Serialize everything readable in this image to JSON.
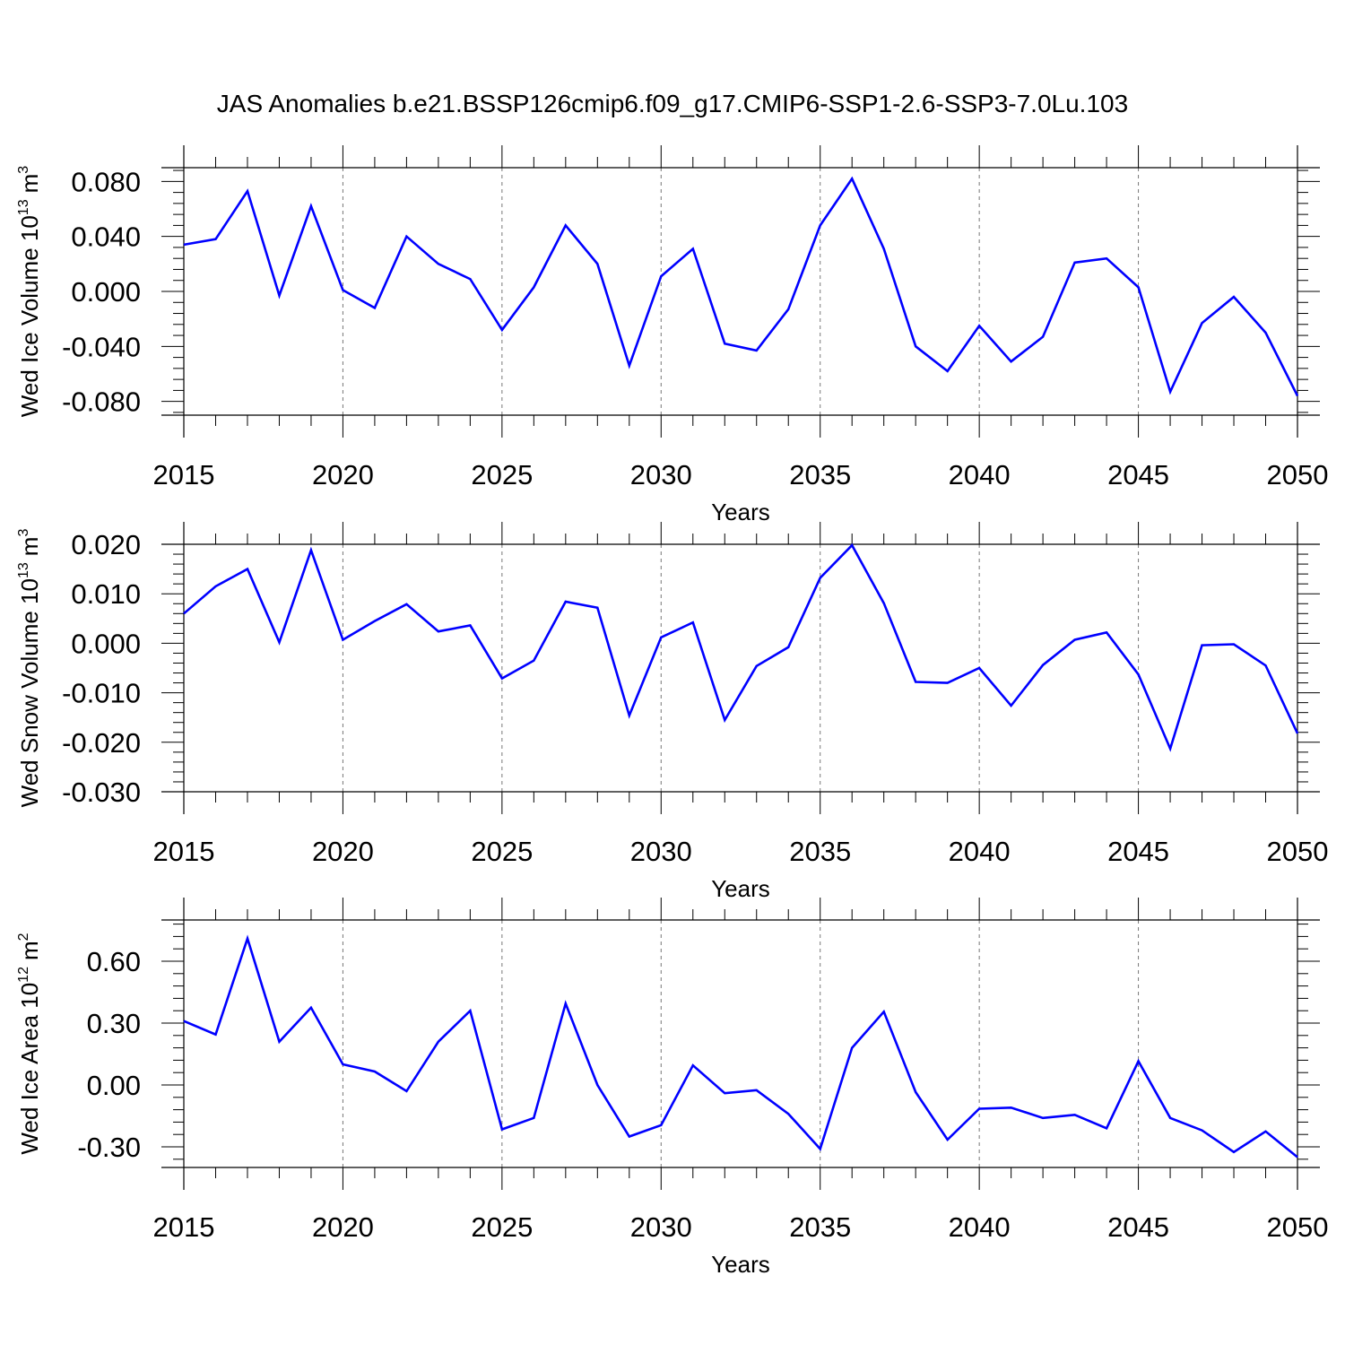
{
  "title": "JAS Anomalies b.e21.BSSP126cmip6.f09_g17.CMIP6-SSP1-2.6-SSP3-7.0Lu.103",
  "line_color": "#0000ff",
  "chart_data": [
    {
      "type": "line",
      "xlabel": "Years",
      "ylabel": {
        "main": "Wed Ice Volume 10",
        "exp": "13",
        "unit": "m",
        "unit_exp": "3"
      },
      "xlim": [
        2015,
        2050
      ],
      "ylim": [
        -0.09,
        0.09
      ],
      "xticks": [
        2015,
        2020,
        2025,
        2030,
        2035,
        2040,
        2045,
        2050
      ],
      "xtick_labels": [
        "2015",
        "2020",
        "2025",
        "2030",
        "2035",
        "2040",
        "2045",
        "2050"
      ],
      "yticks": [
        -0.08,
        -0.04,
        0.0,
        0.04,
        0.08
      ],
      "ytick_labels": [
        "-0.080",
        "-0.040",
        "0.000",
        "0.040",
        "0.080"
      ],
      "x": [
        2015,
        2016,
        2017,
        2018,
        2019,
        2020,
        2021,
        2022,
        2023,
        2024,
        2025,
        2026,
        2027,
        2028,
        2029,
        2030,
        2031,
        2032,
        2033,
        2034,
        2035,
        2036,
        2037,
        2038,
        2039,
        2040,
        2041,
        2042,
        2043,
        2044,
        2045,
        2046,
        2047,
        2048,
        2049,
        2050
      ],
      "values": [
        0.034,
        0.038,
        0.073,
        -0.003,
        0.062,
        0.001,
        -0.012,
        0.04,
        0.02,
        0.009,
        -0.028,
        0.003,
        0.048,
        0.02,
        -0.054,
        0.011,
        0.031,
        -0.038,
        -0.043,
        -0.013,
        0.048,
        0.082,
        0.031,
        -0.04,
        -0.058,
        -0.025,
        -0.051,
        -0.033,
        0.021,
        0.024,
        0.003,
        -0.073,
        -0.023,
        -0.004,
        -0.03,
        -0.076
      ]
    },
    {
      "type": "line",
      "xlabel": "Years",
      "ylabel": {
        "main": "Wed Snow Volume 10",
        "exp": "13",
        "unit": "m",
        "unit_exp": "3"
      },
      "xlim": [
        2015,
        2050
      ],
      "ylim": [
        -0.03,
        0.02
      ],
      "xticks": [
        2015,
        2020,
        2025,
        2030,
        2035,
        2040,
        2045,
        2050
      ],
      "xtick_labels": [
        "2015",
        "2020",
        "2025",
        "2030",
        "2035",
        "2040",
        "2045",
        "2050"
      ],
      "yticks": [
        -0.03,
        -0.02,
        -0.01,
        0.0,
        0.01,
        0.02
      ],
      "ytick_labels": [
        "-0.030",
        "-0.020",
        "-0.010",
        "0.000",
        "0.010",
        "0.020"
      ],
      "x": [
        2015,
        2016,
        2017,
        2018,
        2019,
        2020,
        2021,
        2022,
        2023,
        2024,
        2025,
        2026,
        2027,
        2028,
        2029,
        2030,
        2031,
        2032,
        2033,
        2034,
        2035,
        2036,
        2037,
        2038,
        2039,
        2040,
        2041,
        2042,
        2043,
        2044,
        2045,
        2046,
        2047,
        2048,
        2049,
        2050
      ],
      "values": [
        0.006,
        0.0115,
        0.015,
        0.0002,
        0.0188,
        0.0007,
        0.0045,
        0.0079,
        0.0024,
        0.0036,
        -0.0071,
        -0.0035,
        0.0084,
        0.0072,
        -0.0146,
        0.0012,
        0.0042,
        -0.0155,
        -0.0046,
        -0.0008,
        0.0132,
        0.0198,
        0.0081,
        -0.0078,
        -0.008,
        -0.005,
        -0.0126,
        -0.0044,
        0.0007,
        0.0022,
        -0.0063,
        -0.0213,
        -0.0004,
        -0.0002,
        -0.0045,
        -0.0182
      ]
    },
    {
      "type": "line",
      "xlabel": "Years",
      "ylabel": {
        "main": "Wed Ice Area 10",
        "exp": "12",
        "unit": "m",
        "unit_exp": "2"
      },
      "xlim": [
        2015,
        2050
      ],
      "ylim": [
        -0.4,
        0.8
      ],
      "xticks": [
        2015,
        2020,
        2025,
        2030,
        2035,
        2040,
        2045,
        2050
      ],
      "xtick_labels": [
        "2015",
        "2020",
        "2025",
        "2030",
        "2035",
        "2040",
        "2045",
        "2050"
      ],
      "yticks": [
        -0.3,
        0.0,
        0.3,
        0.6
      ],
      "ytick_labels": [
        "-0.30",
        "0.00",
        "0.30",
        "0.60"
      ],
      "x": [
        2015,
        2016,
        2017,
        2018,
        2019,
        2020,
        2021,
        2022,
        2023,
        2024,
        2025,
        2026,
        2027,
        2028,
        2029,
        2030,
        2031,
        2032,
        2033,
        2034,
        2035,
        2036,
        2037,
        2038,
        2039,
        2040,
        2041,
        2042,
        2043,
        2044,
        2045,
        2046,
        2047,
        2048,
        2049,
        2050
      ],
      "values": [
        0.31,
        0.245,
        0.71,
        0.21,
        0.375,
        0.1,
        0.065,
        -0.03,
        0.21,
        0.36,
        -0.215,
        -0.16,
        0.395,
        0.0,
        -0.25,
        -0.195,
        0.095,
        -0.04,
        -0.025,
        -0.14,
        -0.31,
        0.18,
        0.355,
        -0.035,
        -0.265,
        -0.115,
        -0.11,
        -0.16,
        -0.145,
        -0.21,
        0.115,
        -0.16,
        -0.22,
        -0.325,
        -0.225,
        -0.35
      ]
    }
  ]
}
